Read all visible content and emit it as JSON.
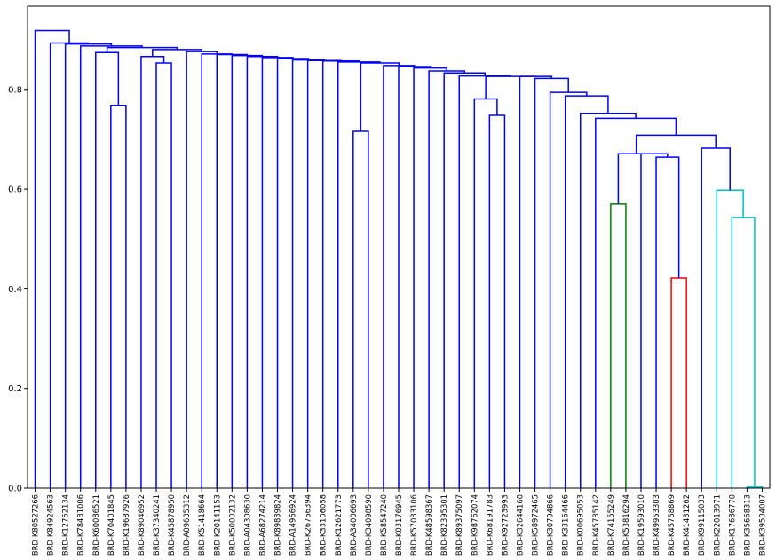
{
  "chart_data": {
    "type": "dendrogram",
    "ylim": [
      0,
      0.967
    ],
    "yticks": [
      "0.0",
      "0.2",
      "0.4",
      "0.6",
      "0.8"
    ],
    "yticks_values": [
      0.0,
      0.2,
      0.4,
      0.6,
      0.8
    ],
    "leaves": [
      "BRD-K80527266",
      "BRD-K84924563",
      "BRD-K12762134",
      "BRD-K78431006",
      "BRD-K60086521",
      "BRD-K70401845",
      "BRD-K19687926",
      "BRD-K89046952",
      "BRD-K37340241",
      "BRD-K45878950",
      "BRD-A09635312",
      "BRD-K51418664",
      "BRD-K20141153",
      "BRD-K50002132",
      "BRD-A04308630",
      "BRD-A68274214",
      "BRD-K89839824",
      "BRD-A14966924",
      "BRD-K26756394",
      "BRD-K33106058",
      "BRD-K12621773",
      "BRD-A34006693",
      "BRD-K34098590",
      "BRD-K58547240",
      "BRD-K03176945",
      "BRD-K57033106",
      "BRD-K48598367",
      "BRD-K82395301",
      "BRD-K89375097",
      "BRD-K98762074",
      "BRD-K68191783",
      "BRD-K92723993",
      "BRD-K32644160",
      "BRD-K58972465",
      "BRD-K30794866",
      "BRD-K33164466",
      "BRD-K00695053",
      "BRD-K45735142",
      "BRD-K74155249",
      "BRD-K53816294",
      "BRD-K19593010",
      "BRD-K49953303",
      "BRD-K45758869",
      "BRD-K41431262",
      "BRD-K99115033",
      "BRD-K22013971",
      "BRD-K17686770",
      "BRD-K35668313",
      "BRD-K39504007"
    ],
    "links": [
      {
        "a": 5,
        "b": 6,
        "h": 0.768,
        "color": "#0000ff"
      },
      {
        "a": 8,
        "b": 9,
        "h": 0.853,
        "color": "#0000ff"
      },
      {
        "a": 7,
        "b": "n1",
        "h": 0.866,
        "color": "#0000ff"
      },
      {
        "a": 4,
        "b": "n0",
        "h": 0.874,
        "color": "#0000ff"
      },
      {
        "a": 21,
        "b": 22,
        "h": 0.716,
        "color": "#0000ff"
      },
      {
        "a": 30,
        "b": 31,
        "h": 0.748,
        "color": "#0000ff"
      },
      {
        "a": 29,
        "b": "n5",
        "h": 0.781,
        "color": "#0000ff"
      },
      {
        "a": 38,
        "b": 39,
        "h": 0.57,
        "color": "#008000"
      },
      {
        "a": 42,
        "b": 43,
        "h": 0.422,
        "color": "#ff0000"
      },
      {
        "a": 41,
        "b": "n8",
        "h": 0.664,
        "color": "#0000ff"
      },
      {
        "a": 40,
        "b": "n9",
        "h": 0.671,
        "color": "#0000ff"
      },
      {
        "a": "n7",
        "b": "n10",
        "h": 0.671,
        "color": "#0000ff"
      },
      {
        "a": 47,
        "b": 48,
        "h": 0.002,
        "color": "#00bfbf"
      },
      {
        "a": 46,
        "b": "n12",
        "h": 0.543,
        "color": "#00bfbf"
      },
      {
        "a": 45,
        "b": "n13",
        "h": 0.598,
        "color": "#00bfbf"
      },
      {
        "a": 44,
        "b": "n14",
        "h": 0.682,
        "color": "#0000ff"
      },
      {
        "a": "n11",
        "b": "n15",
        "h": 0.708,
        "color": "#0000ff"
      },
      {
        "a": 37,
        "b": "n16",
        "h": 0.742,
        "color": "#0000ff"
      },
      {
        "a": 36,
        "b": "n17",
        "h": 0.752,
        "color": "#0000ff"
      },
      {
        "a": 35,
        "b": "n18",
        "h": 0.787,
        "color": "#0000ff"
      },
      {
        "a": 34,
        "b": "n19",
        "h": 0.794,
        "color": "#0000ff"
      },
      {
        "a": 33,
        "b": "n20",
        "h": 0.822,
        "color": "#0000ff"
      },
      {
        "a": 32,
        "b": "n21",
        "h": 0.826,
        "color": "#0000ff"
      },
      {
        "a": "n6",
        "b": "n22",
        "h": 0.826,
        "color": "#0000ff"
      },
      {
        "a": 28,
        "b": "n23",
        "h": 0.827,
        "color": "#0000ff"
      },
      {
        "a": 27,
        "b": "n24",
        "h": 0.833,
        "color": "#0000ff"
      },
      {
        "a": 26,
        "b": "n25",
        "h": 0.837,
        "color": "#0000ff"
      },
      {
        "a": 25,
        "b": "n26",
        "h": 0.843,
        "color": "#0000ff"
      },
      {
        "a": 24,
        "b": "n27",
        "h": 0.846,
        "color": "#0000ff"
      },
      {
        "a": 23,
        "b": "n28",
        "h": 0.848,
        "color": "#0000ff"
      },
      {
        "a": "n4",
        "b": "n29",
        "h": 0.853,
        "color": "#0000ff"
      },
      {
        "a": 20,
        "b": "n30",
        "h": 0.855,
        "color": "#0000ff"
      },
      {
        "a": 19,
        "b": "n31",
        "h": 0.857,
        "color": "#0000ff"
      },
      {
        "a": 18,
        "b": "n32",
        "h": 0.858,
        "color": "#0000ff"
      },
      {
        "a": 17,
        "b": "n33",
        "h": 0.859,
        "color": "#0000ff"
      },
      {
        "a": 16,
        "b": "n34",
        "h": 0.862,
        "color": "#0000ff"
      },
      {
        "a": 15,
        "b": "n35",
        "h": 0.864,
        "color": "#0000ff"
      },
      {
        "a": 14,
        "b": "n36",
        "h": 0.866,
        "color": "#0000ff"
      },
      {
        "a": 13,
        "b": "n37",
        "h": 0.868,
        "color": "#0000ff"
      },
      {
        "a": 12,
        "b": "n38",
        "h": 0.87,
        "color": "#0000ff"
      },
      {
        "a": 11,
        "b": "n39",
        "h": 0.871,
        "color": "#0000ff"
      },
      {
        "a": 10,
        "b": "n40",
        "h": 0.876,
        "color": "#0000ff"
      },
      {
        "a": "n2",
        "b": "n41",
        "h": 0.88,
        "color": "#0000ff"
      },
      {
        "a": "n3",
        "b": "n42",
        "h": 0.884,
        "color": "#0000ff"
      },
      {
        "a": 3,
        "b": "n43",
        "h": 0.887,
        "color": "#0000ff"
      },
      {
        "a": 2,
        "b": "n44",
        "h": 0.891,
        "color": "#0000ff"
      },
      {
        "a": 1,
        "b": "n45",
        "h": 0.893,
        "color": "#0000ff"
      },
      {
        "a": 0,
        "b": "n46",
        "h": 0.918,
        "color": "#0000ff"
      }
    ]
  }
}
